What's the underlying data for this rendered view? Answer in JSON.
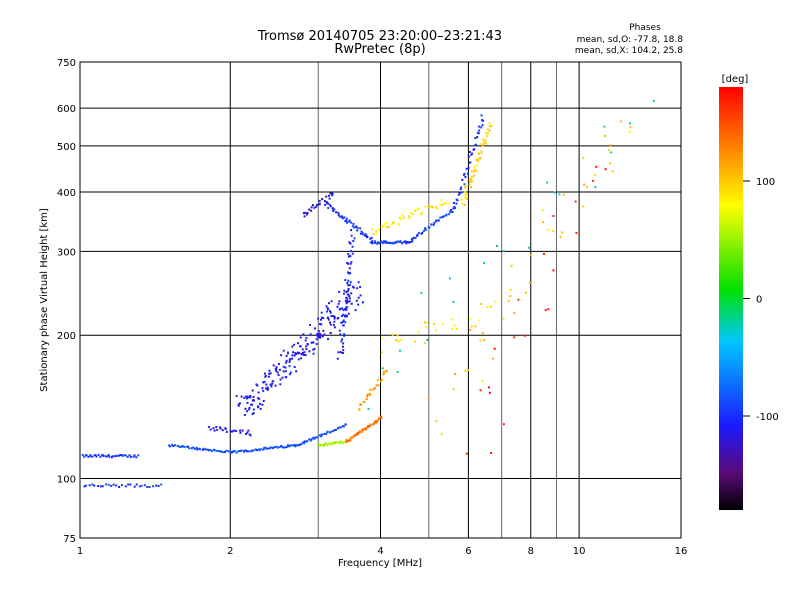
{
  "chart_data": {
    "type": "scatter",
    "title": "Tromsø 20140705 23:20:00–23:21:43",
    "subtitle": "RwPretec (8p)",
    "xlabel": "Frequency [MHz]",
    "ylabel": "Stationary phase Virtual Height [km]",
    "x_scale": "log",
    "y_scale": "log",
    "xlim": [
      1,
      16
    ],
    "ylim": [
      75,
      750
    ],
    "x_ticks": [
      1,
      2,
      4,
      6,
      8,
      10,
      16
    ],
    "x_tick_labels": [
      "1",
      "2",
      "4",
      "6",
      "8",
      "10",
      "16"
    ],
    "x_minor_grid": [
      3,
      5,
      7,
      9
    ],
    "y_ticks": [
      75,
      100,
      200,
      300,
      400,
      500,
      600,
      750
    ],
    "y_tick_labels": [
      "75",
      "100",
      "200",
      "300",
      "400",
      "500",
      "600",
      "750"
    ],
    "grid": true,
    "phase_header": "Phases",
    "phase_stats": [
      "mean, sd,O: -77.8, 18.8",
      "mean, sd,X: 104.2, 25.8"
    ],
    "colorbar": {
      "label": "[deg]",
      "min": -180,
      "max": 180,
      "tick_labels": [
        "100",
        "0",
        "-100"
      ],
      "tick_values": [
        100,
        0,
        -100
      ],
      "colormap": "rainbow (black-purple-blue-cyan-green-yellow-orange-red)"
    },
    "traces": [
      {
        "name": "",
        "phase": -95,
        "from": [
          1.0,
          112
        ],
        "to": [
          1.3,
          112
        ],
        "n": 40,
        "spread": 0.012
      },
      {
        "name": "",
        "phase": -95,
        "from": [
          1.0,
          97
        ],
        "to": [
          1.45,
          97
        ],
        "n": 30,
        "spread": 0.015
      },
      {
        "name": "",
        "phase": -90,
        "from": [
          1.5,
          118
        ],
        "to": [
          2.0,
          114
        ],
        "n": 40,
        "spread": 0.01
      },
      {
        "name": "",
        "phase": -85,
        "from": [
          2.0,
          114
        ],
        "to": [
          2.7,
          118
        ],
        "n": 50,
        "spread": 0.01
      },
      {
        "name": "",
        "phase": -88,
        "from": [
          2.7,
          118
        ],
        "to": [
          3.4,
          130
        ],
        "n": 40,
        "spread": 0.01
      },
      {
        "name": "",
        "phase": -115,
        "from": [
          1.8,
          128
        ],
        "to": [
          2.2,
          125
        ],
        "n": 25,
        "spread": 0.025
      },
      {
        "name": "",
        "phase": -110,
        "from": [
          2.1,
          140
        ],
        "to": [
          3.6,
          250
        ],
        "n": 220,
        "spread": 0.12
      },
      {
        "name": "",
        "phase": -105,
        "from": [
          3.3,
          180
        ],
        "to": [
          3.5,
          330
        ],
        "n": 60,
        "spread": 0.04
      },
      {
        "name": "",
        "phase": -100,
        "from": [
          3.1,
          380
        ],
        "to": [
          3.8,
          320
        ],
        "n": 45,
        "spread": 0.02
      },
      {
        "name": "",
        "phase": -95,
        "from": [
          3.8,
          315
        ],
        "to": [
          4.6,
          315
        ],
        "n": 40,
        "spread": 0.012
      },
      {
        "name": "",
        "phase": -95,
        "from": [
          4.6,
          320
        ],
        "to": [
          5.6,
          370
        ],
        "n": 35,
        "spread": 0.015
      },
      {
        "name": "",
        "phase": -100,
        "from": [
          5.6,
          370
        ],
        "to": [
          6.4,
          580
        ],
        "n": 40,
        "spread": 0.03
      },
      {
        "name": "",
        "phase": -115,
        "from": [
          2.8,
          360
        ],
        "to": [
          3.2,
          400
        ],
        "n": 25,
        "spread": 0.03
      },
      {
        "name": "",
        "phase": 55,
        "from": [
          3.0,
          118
        ],
        "to": [
          3.4,
          120
        ],
        "n": 25,
        "spread": 0.01
      },
      {
        "name": "",
        "phase": 135,
        "from": [
          3.4,
          120
        ],
        "to": [
          4.0,
          135
        ],
        "n": 45,
        "spread": 0.01
      },
      {
        "name": "",
        "phase": 120,
        "from": [
          3.6,
          140
        ],
        "to": [
          4.1,
          170
        ],
        "n": 25,
        "spread": 0.02
      },
      {
        "name": "",
        "phase": 85,
        "from": [
          3.8,
          330
        ],
        "to": [
          5.4,
          385
        ],
        "n": 40,
        "spread": 0.035
      },
      {
        "name": "",
        "phase": 95,
        "from": [
          5.8,
          380
        ],
        "to": [
          6.6,
          560
        ],
        "n": 50,
        "spread": 0.04
      },
      {
        "name": "",
        "phase": 90,
        "from": [
          4.0,
          190
        ],
        "to": [
          7.0,
          230
        ],
        "n": 30,
        "spread": 0.1
      },
      {
        "name": "",
        "phase": 100,
        "from": [
          5.0,
          140
        ],
        "to": [
          13.0,
          600
        ],
        "n": 40,
        "spread": 0.25
      },
      {
        "name": "",
        "phase": 170,
        "from": [
          6.0,
          120
        ],
        "to": [
          11.0,
          450
        ],
        "n": 20,
        "spread": 0.25
      },
      {
        "name": "",
        "phase": -20,
        "from": [
          3.5,
          150
        ],
        "to": [
          14.0,
          620
        ],
        "n": 20,
        "spread": 0.25
      }
    ]
  }
}
